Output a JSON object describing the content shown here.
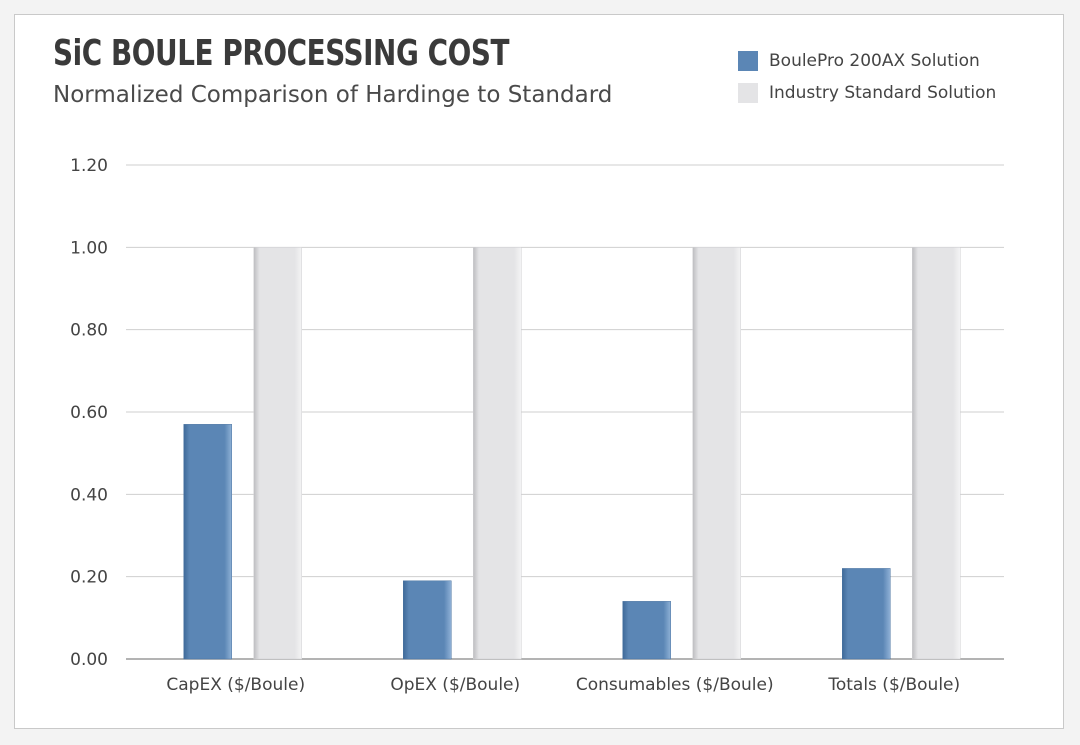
{
  "chart_data": {
    "type": "bar",
    "title": "SiC BOULE PROCESSING COST",
    "subtitle": "Normalized Comparison of Hardinge to Standard",
    "xlabel": "",
    "ylabel": "",
    "ylim": [
      0,
      1.2
    ],
    "yticks": [
      "0.00",
      "0.20",
      "0.40",
      "0.60",
      "0.80",
      "1.00",
      "1.20"
    ],
    "categories": [
      "CapEX ($/Boule)",
      "OpEX ($/Boule)",
      "Consumables ($/Boule)",
      "Totals ($/Boule)"
    ],
    "series": [
      {
        "name": "BoulePro 200AX Solution",
        "color": "#5b86b5",
        "values": [
          0.57,
          0.19,
          0.14,
          0.22
        ]
      },
      {
        "name": "Industry Standard Solution",
        "color": "#e4e4e6",
        "values": [
          1.0,
          1.0,
          1.0,
          1.0
        ]
      }
    ],
    "grid": true,
    "legend_position": "top-right"
  }
}
